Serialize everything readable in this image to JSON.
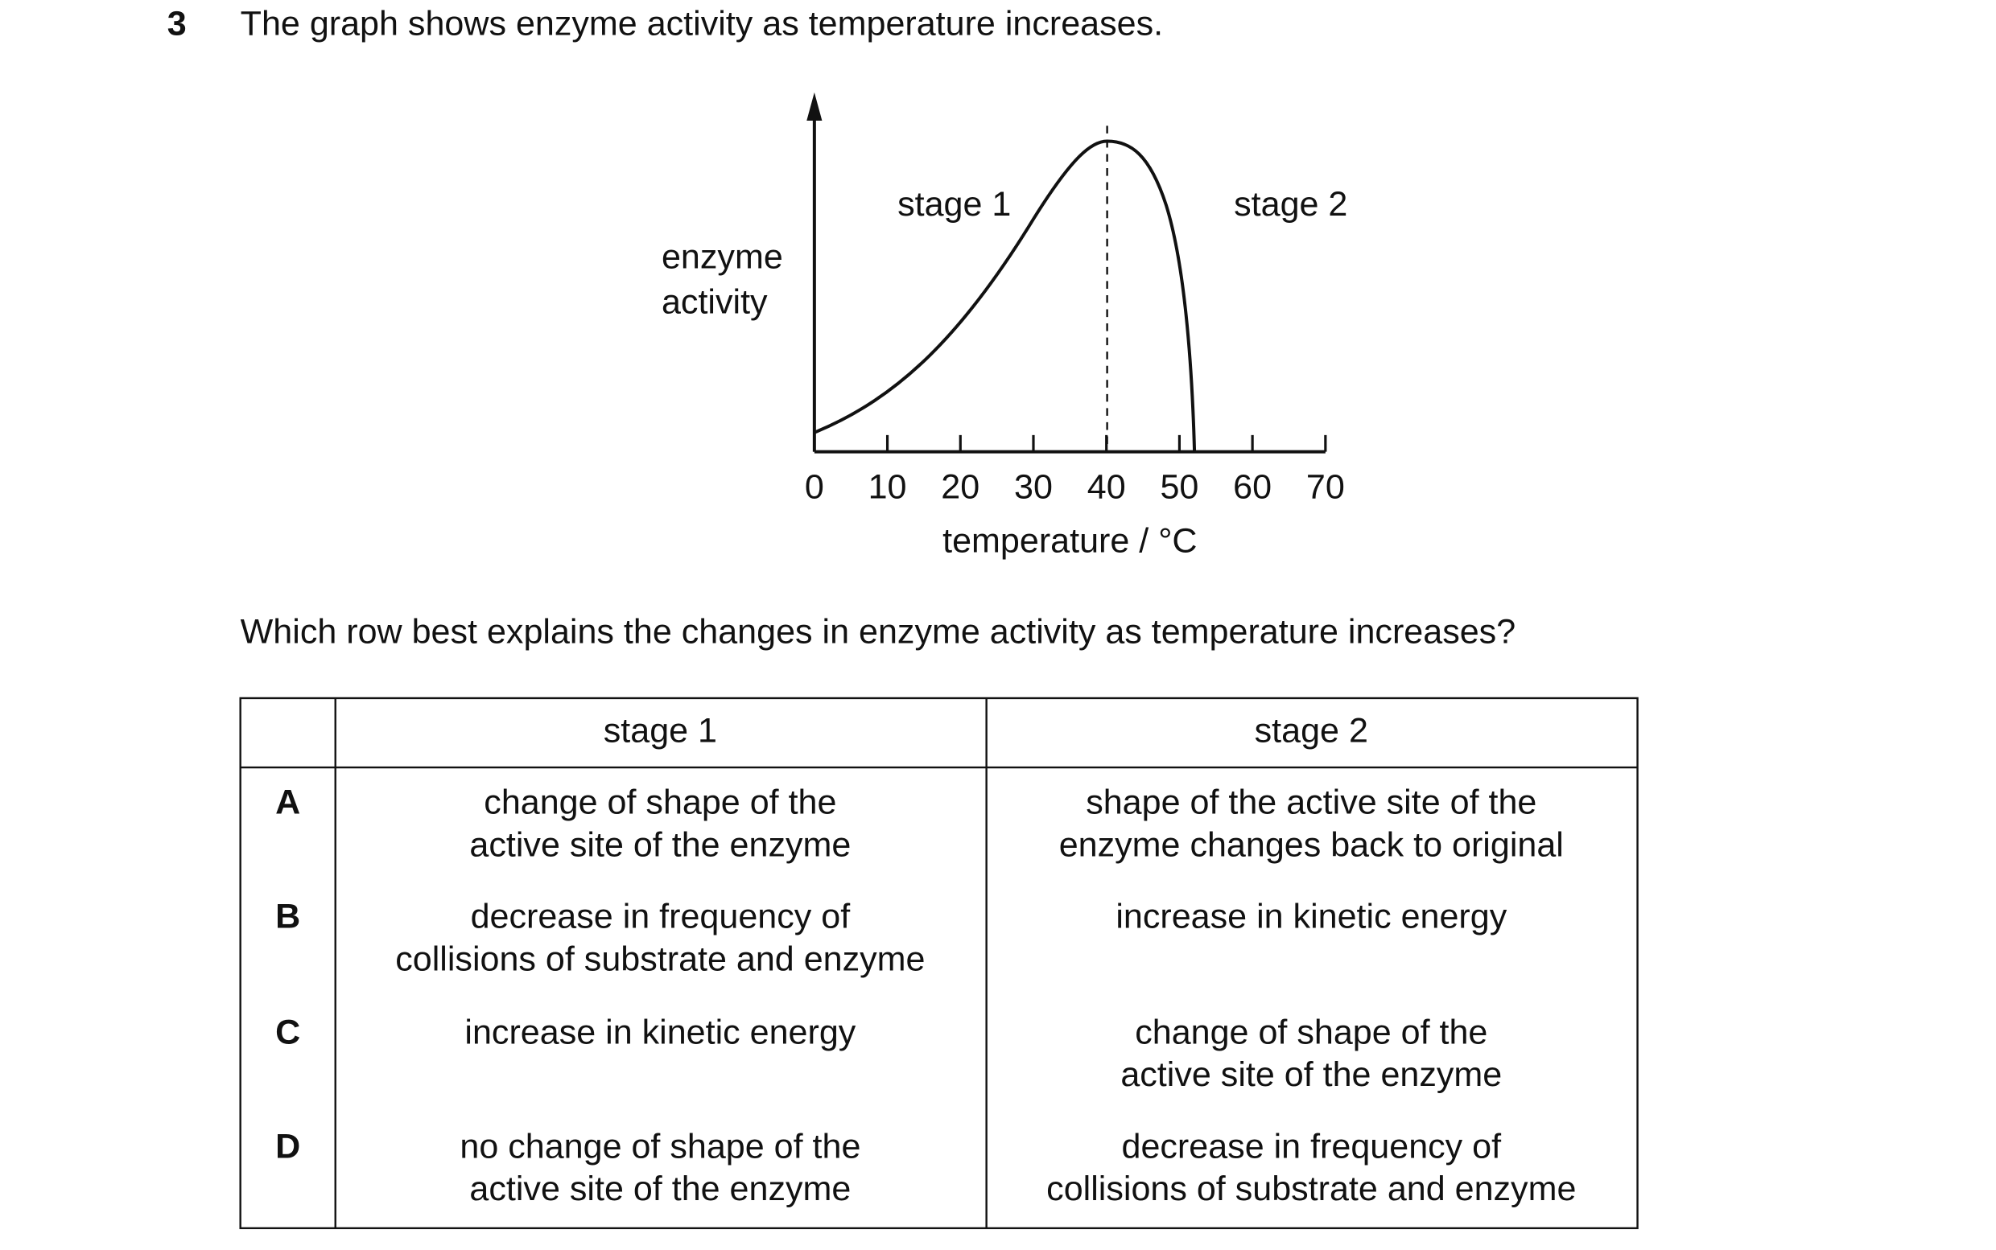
{
  "question": {
    "number": "3",
    "text": "The graph shows enzyme activity as temperature increases."
  },
  "chart_data": {
    "type": "line",
    "y_label": [
      "enzyme",
      "activity"
    ],
    "x_label": "temperature / °C",
    "xlim": [
      0,
      70
    ],
    "xticks": [
      0,
      10,
      20,
      30,
      40,
      50,
      60,
      70
    ],
    "annotations": [
      "stage 1",
      "stage 2"
    ]
  },
  "prompt": "Which row best explains the changes in enzyme activity as temperature increases?",
  "table": {
    "header": [
      "stage 1",
      "stage 2"
    ],
    "rows": [
      {
        "letter": "A",
        "cells": [
          [
            "change of shape of the",
            "active site of the enzyme"
          ],
          [
            "shape of the active site of the",
            "enzyme changes back to original"
          ]
        ]
      },
      {
        "letter": "B",
        "cells": [
          [
            "decrease in frequency of",
            "collisions of substrate and enzyme"
          ],
          [
            "increase in kinetic energy"
          ]
        ]
      },
      {
        "letter": "C",
        "cells": [
          [
            "increase in kinetic energy"
          ],
          [
            "change of shape of the",
            "active site of the enzyme"
          ]
        ]
      },
      {
        "letter": "D",
        "cells": [
          [
            "no change of shape of the",
            "active site of the enzyme"
          ],
          [
            "decrease in frequency of",
            "collisions of substrate and enzyme"
          ]
        ]
      }
    ]
  }
}
